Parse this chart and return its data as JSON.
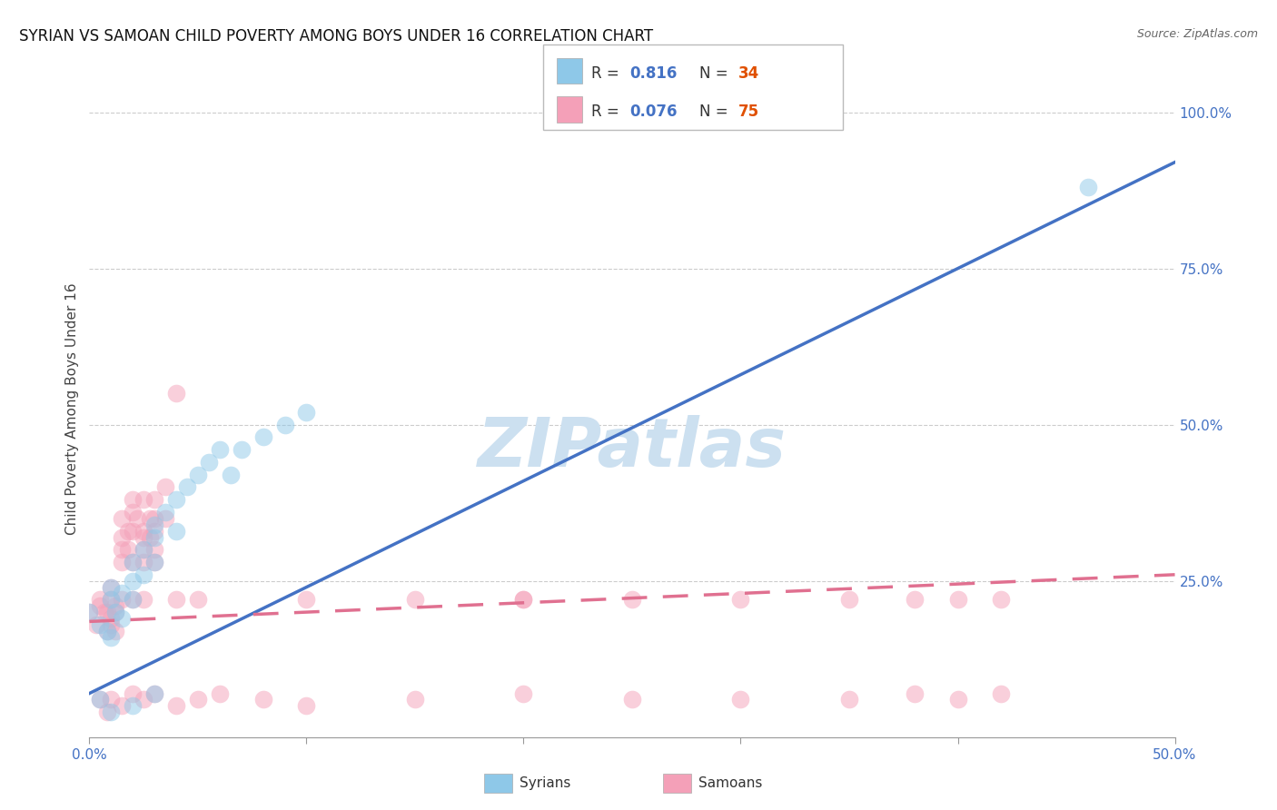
{
  "title": "SYRIAN VS SAMOAN CHILD POVERTY AMONG BOYS UNDER 16 CORRELATION CHART",
  "source": "Source: ZipAtlas.com",
  "ylabel": "Child Poverty Among Boys Under 16",
  "xlim": [
    0.0,
    0.5
  ],
  "ylim": [
    0.0,
    1.05
  ],
  "xticks": [
    0.0,
    0.1,
    0.2,
    0.3,
    0.4,
    0.5
  ],
  "xtick_labels": [
    "0.0%",
    "",
    "",
    "",
    "",
    "50.0%"
  ],
  "ytick_labels_right": [
    "100.0%",
    "75.0%",
    "50.0%",
    "25.0%"
  ],
  "ytick_vals_right": [
    1.0,
    0.75,
    0.5,
    0.25
  ],
  "watermark": "ZIPatlas",
  "syrian_color": "#8ec8e8",
  "samoan_color": "#f4a0b8",
  "syrian_line_color": "#4472c4",
  "samoan_line_color": "#e07090",
  "syrian_points": [
    [
      0.0,
      0.2
    ],
    [
      0.005,
      0.18
    ],
    [
      0.008,
      0.17
    ],
    [
      0.01,
      0.22
    ],
    [
      0.01,
      0.16
    ],
    [
      0.01,
      0.24
    ],
    [
      0.012,
      0.2
    ],
    [
      0.015,
      0.23
    ],
    [
      0.015,
      0.19
    ],
    [
      0.02,
      0.25
    ],
    [
      0.02,
      0.22
    ],
    [
      0.02,
      0.28
    ],
    [
      0.025,
      0.3
    ],
    [
      0.025,
      0.26
    ],
    [
      0.03,
      0.32
    ],
    [
      0.03,
      0.28
    ],
    [
      0.03,
      0.34
    ],
    [
      0.035,
      0.36
    ],
    [
      0.04,
      0.38
    ],
    [
      0.04,
      0.33
    ],
    [
      0.045,
      0.4
    ],
    [
      0.05,
      0.42
    ],
    [
      0.055,
      0.44
    ],
    [
      0.06,
      0.46
    ],
    [
      0.065,
      0.42
    ],
    [
      0.07,
      0.46
    ],
    [
      0.08,
      0.48
    ],
    [
      0.09,
      0.5
    ],
    [
      0.1,
      0.52
    ],
    [
      0.005,
      0.06
    ],
    [
      0.01,
      0.04
    ],
    [
      0.02,
      0.05
    ],
    [
      0.03,
      0.07
    ],
    [
      0.46,
      0.88
    ]
  ],
  "samoan_points": [
    [
      0.0,
      0.2
    ],
    [
      0.003,
      0.18
    ],
    [
      0.005,
      0.22
    ],
    [
      0.007,
      0.2
    ],
    [
      0.008,
      0.17
    ],
    [
      0.01,
      0.24
    ],
    [
      0.01,
      0.19
    ],
    [
      0.01,
      0.22
    ],
    [
      0.012,
      0.2
    ],
    [
      0.012,
      0.17
    ],
    [
      0.015,
      0.35
    ],
    [
      0.015,
      0.32
    ],
    [
      0.015,
      0.28
    ],
    [
      0.015,
      0.3
    ],
    [
      0.018,
      0.33
    ],
    [
      0.018,
      0.3
    ],
    [
      0.02,
      0.36
    ],
    [
      0.02,
      0.33
    ],
    [
      0.02,
      0.38
    ],
    [
      0.02,
      0.28
    ],
    [
      0.022,
      0.35
    ],
    [
      0.025,
      0.38
    ],
    [
      0.025,
      0.33
    ],
    [
      0.025,
      0.3
    ],
    [
      0.025,
      0.28
    ],
    [
      0.025,
      0.32
    ],
    [
      0.028,
      0.35
    ],
    [
      0.028,
      0.32
    ],
    [
      0.03,
      0.38
    ],
    [
      0.03,
      0.35
    ],
    [
      0.03,
      0.33
    ],
    [
      0.03,
      0.3
    ],
    [
      0.03,
      0.28
    ],
    [
      0.035,
      0.4
    ],
    [
      0.035,
      0.35
    ],
    [
      0.04,
      0.55
    ],
    [
      0.005,
      0.21
    ],
    [
      0.008,
      0.2
    ],
    [
      0.01,
      0.18
    ],
    [
      0.012,
      0.21
    ],
    [
      0.015,
      0.22
    ],
    [
      0.02,
      0.22
    ],
    [
      0.025,
      0.22
    ],
    [
      0.04,
      0.22
    ],
    [
      0.05,
      0.22
    ],
    [
      0.1,
      0.22
    ],
    [
      0.15,
      0.22
    ],
    [
      0.2,
      0.22
    ],
    [
      0.2,
      0.22
    ],
    [
      0.25,
      0.22
    ],
    [
      0.3,
      0.22
    ],
    [
      0.35,
      0.22
    ],
    [
      0.38,
      0.22
    ],
    [
      0.4,
      0.22
    ],
    [
      0.42,
      0.22
    ],
    [
      0.005,
      0.06
    ],
    [
      0.008,
      0.04
    ],
    [
      0.01,
      0.06
    ],
    [
      0.015,
      0.05
    ],
    [
      0.02,
      0.07
    ],
    [
      0.025,
      0.06
    ],
    [
      0.03,
      0.07
    ],
    [
      0.04,
      0.05
    ],
    [
      0.05,
      0.06
    ],
    [
      0.06,
      0.07
    ],
    [
      0.08,
      0.06
    ],
    [
      0.1,
      0.05
    ],
    [
      0.15,
      0.06
    ],
    [
      0.2,
      0.07
    ],
    [
      0.25,
      0.06
    ],
    [
      0.3,
      0.06
    ],
    [
      0.35,
      0.06
    ],
    [
      0.38,
      0.07
    ],
    [
      0.4,
      0.06
    ],
    [
      0.42,
      0.07
    ]
  ],
  "syrian_line_x": [
    0.0,
    0.5
  ],
  "syrian_line_y": [
    0.07,
    0.92
  ],
  "samoan_line_x": [
    0.0,
    0.5
  ],
  "samoan_line_y": [
    0.185,
    0.26
  ],
  "background_color": "#ffffff",
  "grid_color": "#cccccc",
  "title_fontsize": 12,
  "axis_label_fontsize": 11,
  "tick_fontsize": 11,
  "watermark_color": "#cce0f0",
  "watermark_fontsize": 54,
  "legend_R1": "0.816",
  "legend_N1": "34",
  "legend_R2": "0.076",
  "legend_N2": "75",
  "r_color": "#4472c4",
  "n_color": "#e05000",
  "bottom_legend_labels": [
    "Syrians",
    "Samoans"
  ]
}
